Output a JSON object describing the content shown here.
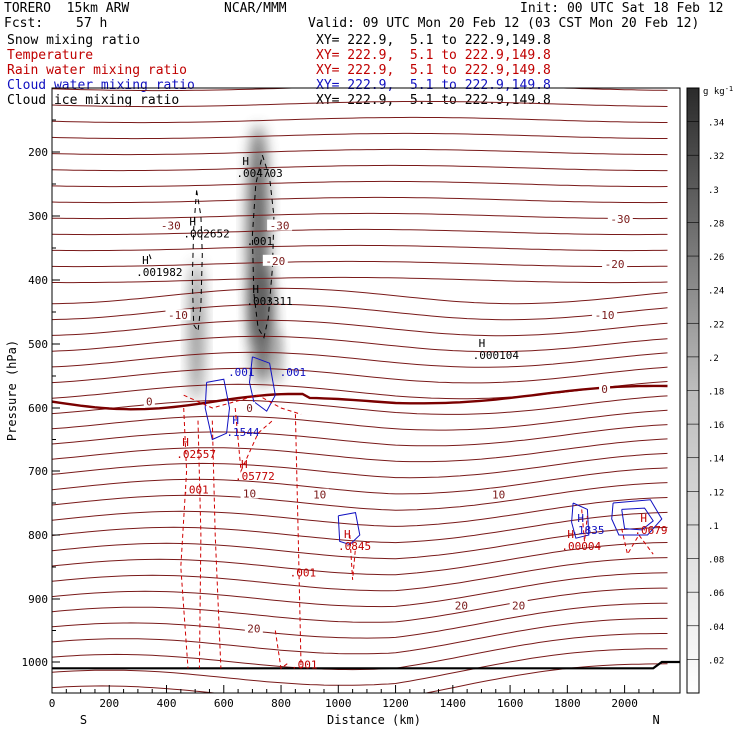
{
  "header": {
    "model": "TORERO  15km ARW",
    "center": "NCAR/MMM",
    "init": "Init: 00 UTC Sat 18 Feb 12",
    "fcst_label": "Fcst:",
    "fcst_value": "57 h",
    "valid": "Valid: 09 UTC Mon 20 Feb 12 (03 CST Mon 20 Feb 12)"
  },
  "fields": [
    {
      "name": "Snow mixing ratio",
      "xy": "XY= 222.9,  5.1 to 222.9,149.8",
      "color": "#000000"
    },
    {
      "name": "Temperature",
      "xy": "XY= 222.9,  5.1 to 222.9,149.8",
      "color": "#c00000"
    },
    {
      "name": "Rain water mixing ratio",
      "xy": "XY= 222.9,  5.1 to 222.9,149.8",
      "color": "#c00000"
    },
    {
      "name": "Cloud water mixing ratio",
      "xy": "XY= 222.9,  5.1 to 222.9,149.8",
      "color": "#1010c0"
    },
    {
      "name": "Cloud ice mixing ratio",
      "xy": "XY= 222.9,  5.1 to 222.9,149.8",
      "color": "#000000"
    }
  ],
  "chart_data": {
    "type": "cross-section",
    "xlabel": "Distance (km)",
    "ylabel": "Pressure (hPa)",
    "xlim": [
      0,
      2150
    ],
    "ylim": [
      1050,
      100
    ],
    "y_scale": "log",
    "x_ticks": [
      "0",
      "200",
      "400",
      "600",
      "800",
      "1000",
      "1200",
      "1400",
      "1600",
      "1800",
      "2000"
    ],
    "y_ticks": [
      "200",
      "300",
      "400",
      "500",
      "600",
      "700",
      "800",
      "900",
      "1000"
    ],
    "endpoints": {
      "left": "S",
      "right": "N"
    },
    "colorbar": {
      "unit": "g kg",
      "unit_exp": "-1",
      "labels": [
        ".02",
        ".04",
        ".06",
        ".08",
        ".1",
        ".12",
        ".14",
        ".16",
        ".18",
        ".2",
        ".22",
        ".24",
        ".26",
        ".28",
        ".3",
        ".32",
        ".34"
      ]
    },
    "temperature_labels": [
      {
        "text": "-30",
        "x": 415,
        "p": 315
      },
      {
        "text": "-30",
        "x": 795,
        "p": 315
      },
      {
        "text": "-30",
        "x": 1985,
        "p": 305
      },
      {
        "text": "-20",
        "x": 780,
        "p": 370
      },
      {
        "text": "-20",
        "x": 1965,
        "p": 375
      },
      {
        "text": "-10",
        "x": 440,
        "p": 455
      },
      {
        "text": "-10",
        "x": 1930,
        "p": 455
      },
      {
        "text": "0",
        "x": 340,
        "p": 590
      },
      {
        "text": "0",
        "x": 690,
        "p": 600
      },
      {
        "text": "0",
        "x": 1930,
        "p": 570
      },
      {
        "text": "10",
        "x": 690,
        "p": 735
      },
      {
        "text": "10",
        "x": 935,
        "p": 737
      },
      {
        "text": "10",
        "x": 1560,
        "p": 737
      },
      {
        "text": "20",
        "x": 705,
        "p": 947
      },
      {
        "text": "20",
        "x": 1430,
        "p": 910
      },
      {
        "text": "20",
        "x": 1630,
        "p": 910
      }
    ],
    "maxima": [
      {
        "text": "H",
        "value": ".001982",
        "x": 315,
        "p": 375,
        "color": "#000000"
      },
      {
        "text": "H",
        "value": ".002652",
        "x": 480,
        "p": 315,
        "color": "#000000"
      },
      {
        "text": "H",
        "value": ".004703",
        "x": 665,
        "p": 220,
        "color": "#000000"
      },
      {
        "text": "H",
        "value": ".003311",
        "x": 700,
        "p": 420,
        "color": "#000000"
      },
      {
        "text": "H",
        "value": ".000104",
        "x": 1490,
        "p": 505,
        "color": "#000000"
      },
      {
        "text": "H",
        "value": ".1544",
        "x": 630,
        "p": 625,
        "color": "#1010c0"
      },
      {
        "text": "H",
        "value": ".02557",
        "x": 455,
        "p": 660,
        "color": "#c00000"
      },
      {
        "text": "H",
        "value": ".05772",
        "x": 660,
        "p": 695,
        "color": "#c00000"
      },
      {
        "text": "H",
        "value": ".0845",
        "x": 1020,
        "p": 805,
        "color": "#c00000"
      },
      {
        "text": "H",
        "value": ".00004",
        "x": 1800,
        "p": 805,
        "color": "#c00000"
      },
      {
        "text": "H",
        "value": ".1835",
        "x": 1835,
        "p": 780,
        "color": "#1010c0"
      },
      {
        "text": "H",
        "value": ".0679",
        "x": 2055,
        "p": 780,
        "color": "#c00000"
      }
    ],
    "contour_value_labels": [
      {
        "text": ".001",
        "x": 680,
        "p": 345,
        "color": "#000000"
      },
      {
        "text": ".001",
        "x": 615,
        "p": 550,
        "color": "#1010c0"
      },
      {
        "text": ".001",
        "x": 795,
        "p": 550,
        "color": "#1010c0"
      },
      {
        "text": ".001",
        "x": 455,
        "p": 735,
        "color": "#c00000"
      },
      {
        "text": ".001",
        "x": 830,
        "p": 865,
        "color": "#c00000"
      },
      {
        "text": ".001",
        "x": 835,
        "p": 1010,
        "color": "#c00000"
      }
    ]
  }
}
